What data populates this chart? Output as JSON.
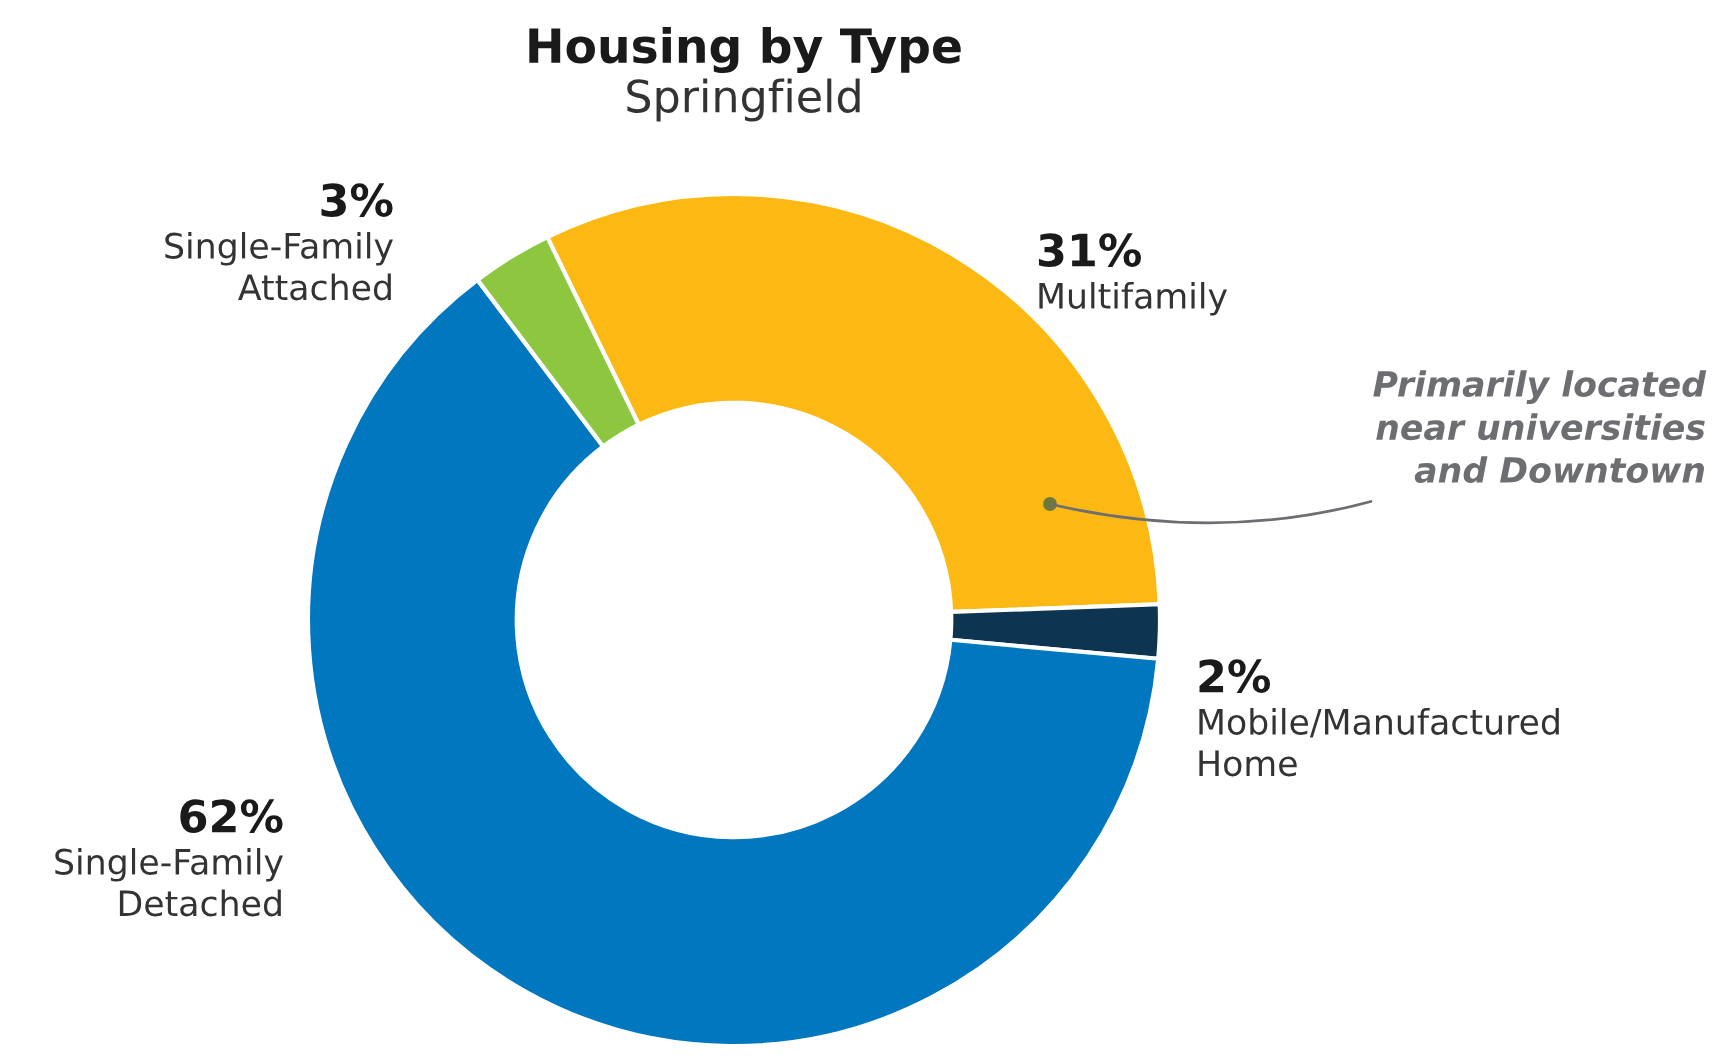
{
  "chart_data": {
    "type": "donut",
    "title": "Housing by Type",
    "subtitle": "Springfield",
    "categories": [
      "Multifamily",
      "Mobile/Manufactured\nHome",
      "Single-Family\nDetached",
      "Single-Family\nAttached"
    ],
    "values": [
      31,
      2,
      62,
      3
    ],
    "colors": [
      "#fdb913",
      "#0d3552",
      "#0077be",
      "#8dc63f"
    ],
    "value_labels": [
      "31%",
      "2%",
      "62%",
      "3%"
    ],
    "annotations": [
      "Primarily located\nnear universities\nand Downtown"
    ]
  }
}
